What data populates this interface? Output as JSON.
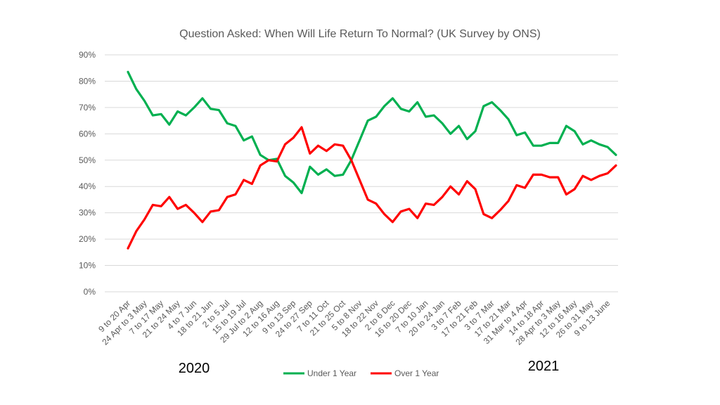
{
  "chart_data": {
    "type": "line",
    "title": "Question Asked: When Will Life Return To Normal? (UK Survey by ONS)",
    "xlabel": "",
    "ylabel": "",
    "ylim": [
      0,
      90
    ],
    "y_ticks": [
      "0%",
      "10%",
      "20%",
      "30%",
      "40%",
      "50%",
      "60%",
      "70%",
      "80%",
      "90%"
    ],
    "grid": true,
    "legend_position": "bottom",
    "year_labels": [
      "2020",
      "2021"
    ],
    "category_labels": [
      "9 to 20 Apr",
      "24 Apr to 3 May",
      "7 to 17 May",
      "21 to 24 May",
      "4 to 7 Jun",
      "18 to 21 Jun",
      "2 to 5 Jul",
      "15 to 19 Jul",
      "29 Jul to 2 Aug",
      "12 to 16 Aug",
      "9 to 13 Sep",
      "24 to 27 Sep",
      "7 to 11 Oct",
      "21 to 25 Oct",
      "5 to 8 Nov",
      "18 to 22 Nov",
      "2 to 6 Dec",
      "16 to 20 Dec",
      "7 to 10 Jan",
      "20 to 24 Jan",
      "3 to 7 Feb",
      "17 to 21 Feb",
      "3 to 7 Mar",
      "17 to 21 Mar",
      "31 Mar to 4 Apr",
      "14 to 18 Apr",
      "28 Apr to 3 May",
      "12 to 16 May",
      "26 to 31 May",
      "9 to 13 June"
    ],
    "series": [
      {
        "name": "Under 1 Year",
        "color": "#00b050",
        "values": [
          83.5,
          77,
          72.5,
          67,
          67.5,
          63.5,
          68.5,
          67,
          70,
          73.5,
          69.5,
          69,
          64,
          63,
          57.5,
          59,
          52,
          50,
          50.5,
          44,
          41.5,
          37.5,
          47.5,
          44.5,
          46.5,
          44,
          44.5,
          50,
          57.5,
          65,
          66.5,
          70.5,
          73.5,
          69.5,
          68.5,
          72,
          66.5,
          67,
          64,
          60,
          63,
          58,
          61,
          70.5,
          72,
          69,
          65.5,
          59.5,
          60.5,
          55.5,
          55.5,
          56.5,
          56.5,
          63,
          61,
          56,
          57.5,
          56,
          55,
          52
        ]
      },
      {
        "name": "Over 1 Year",
        "color": "#ff0000",
        "values": [
          16.5,
          23,
          27.5,
          33,
          32.5,
          36,
          31.5,
          33,
          30,
          26.5,
          30.5,
          31,
          36,
          37,
          42.5,
          41,
          48,
          50,
          49.5,
          56,
          58.5,
          62.5,
          52.5,
          55.5,
          53.5,
          56,
          55.5,
          50,
          42.5,
          35,
          33.5,
          29.5,
          26.5,
          30.5,
          31.5,
          28,
          33.5,
          33,
          36,
          40,
          37,
          42,
          39,
          29.5,
          28,
          31,
          34.5,
          40.5,
          39.5,
          44.5,
          44.5,
          43.5,
          43.5,
          37,
          39,
          44,
          42.5,
          44,
          45,
          48
        ]
      }
    ]
  }
}
